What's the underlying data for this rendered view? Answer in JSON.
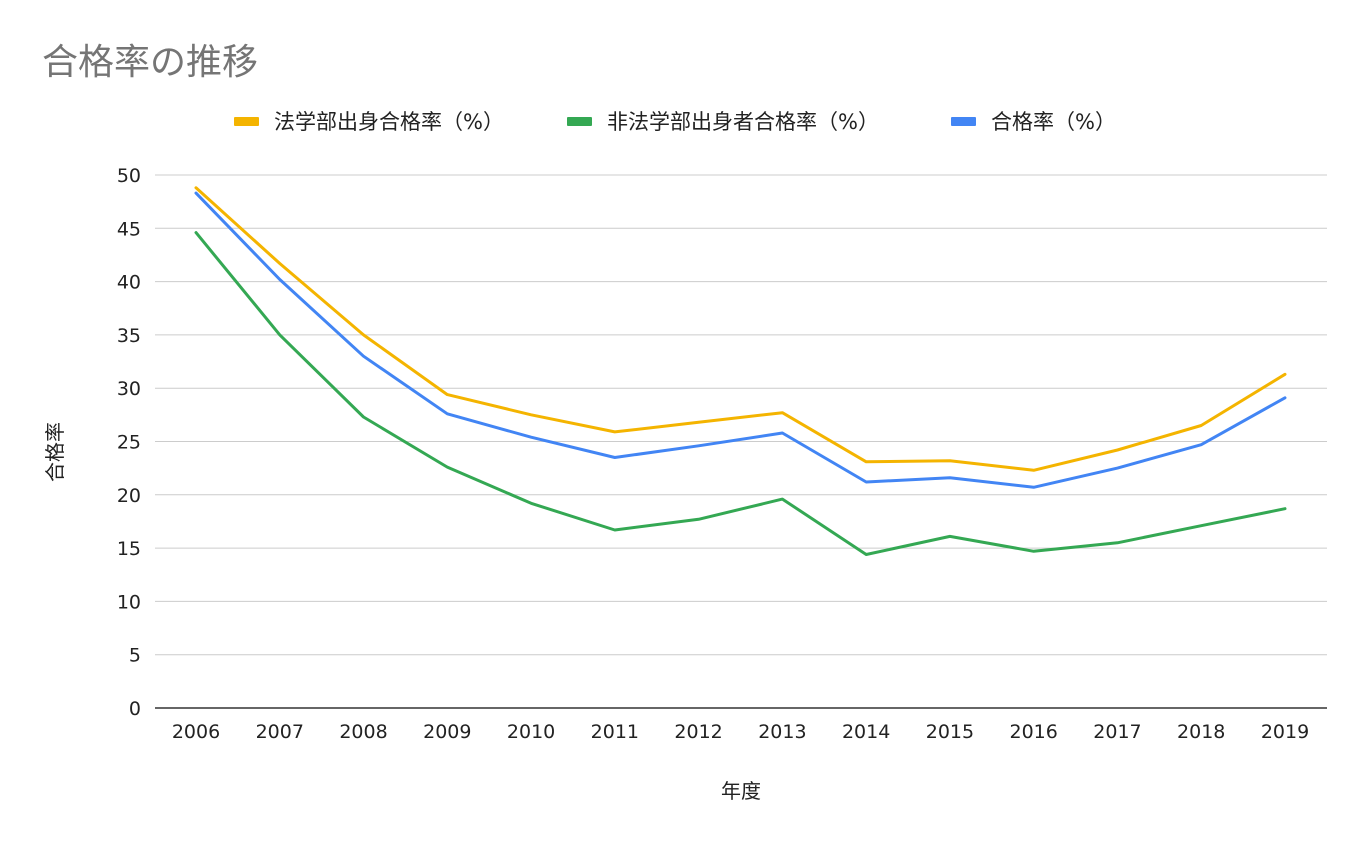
{
  "chart_data": {
    "type": "line",
    "title": "合格率の推移",
    "xlabel": "年度",
    "ylabel": "合格率",
    "x": [
      "2006",
      "2007",
      "2008",
      "2009",
      "2010",
      "2011",
      "2012",
      "2013",
      "2014",
      "2015",
      "2016",
      "2017",
      "2018",
      "2019"
    ],
    "ylim": [
      0,
      50
    ],
    "yticks": [
      "0",
      "5",
      "10",
      "15",
      "20",
      "25",
      "30",
      "35",
      "40",
      "45",
      "50"
    ],
    "grid": true,
    "legend_position": "top",
    "series": [
      {
        "name": "法学部出身合格率（%）",
        "color": "#F4B400",
        "values": [
          48.8,
          41.7,
          35.0,
          29.4,
          27.5,
          25.9,
          26.8,
          27.7,
          23.1,
          23.2,
          22.3,
          24.2,
          26.5,
          31.3
        ]
      },
      {
        "name": "非法学部出身者合格率（%）",
        "color": "#34A853",
        "values": [
          44.6,
          35.0,
          27.3,
          22.6,
          19.2,
          16.7,
          17.7,
          19.6,
          14.4,
          16.1,
          14.7,
          15.5,
          17.1,
          18.7
        ]
      },
      {
        "name": "合格率（%）",
        "color": "#4285F4",
        "values": [
          48.3,
          40.2,
          33.0,
          27.6,
          25.4,
          23.5,
          24.6,
          25.8,
          21.2,
          21.6,
          20.7,
          22.5,
          24.7,
          29.1
        ]
      }
    ]
  }
}
